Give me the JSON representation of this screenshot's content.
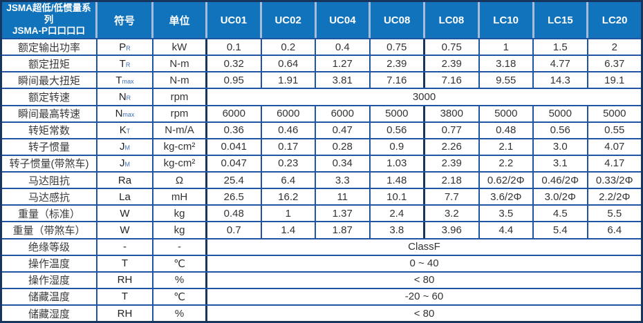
{
  "table": {
    "title_line1": "JSMA超低/低惯量系列",
    "title_line2": "JSMA-P口口口口",
    "header": {
      "symbol_label": "符号",
      "unit_label": "单位",
      "models": [
        "UC01",
        "UC02",
        "UC04",
        "UC08",
        "LC08",
        "LC10",
        "LC15",
        "LC20"
      ]
    },
    "rows": [
      {
        "label": "额定输出功率",
        "sym": "P",
        "sub": "R",
        "unit": "kW",
        "values": [
          "0.1",
          "0.2",
          "0.4",
          "0.75",
          "0.75",
          "1",
          "1.5",
          "2"
        ]
      },
      {
        "label": "额定扭矩",
        "sym": "T",
        "sub": "R",
        "unit": "N-m",
        "values": [
          "0.32",
          "0.64",
          "1.27",
          "2.39",
          "2.39",
          "3.18",
          "4.77",
          "6.37"
        ]
      },
      {
        "label": "瞬间最大扭矩",
        "sym": "T",
        "sub": "max",
        "unit": "N-m",
        "values": [
          "0.95",
          "1.91",
          "3.81",
          "7.16",
          "7.16",
          "9.55",
          "14.3",
          "19.1"
        ]
      },
      {
        "label": "额定转速",
        "sym": "N",
        "sub": "R",
        "unit": "rpm",
        "span": "3000"
      },
      {
        "label": "瞬间最高转速",
        "sym": "N",
        "sub": "max",
        "unit": "rpm",
        "values": [
          "6000",
          "6000",
          "6000",
          "5000",
          "3800",
          "5000",
          "5000",
          "5000"
        ]
      },
      {
        "label": "转矩常数",
        "sym": "K",
        "sub": "T",
        "unit": "N-m/A",
        "values": [
          "0.36",
          "0.46",
          "0.47",
          "0.56",
          "0.77",
          "0.48",
          "0.56",
          "0.55"
        ]
      },
      {
        "label": "转子惯量",
        "sym": "J",
        "sub": "M",
        "unit": "kg-cm²",
        "values": [
          "0.041",
          "0.17",
          "0.28",
          "0.9",
          "2.26",
          "2.1",
          "3.0",
          "4.07"
        ]
      },
      {
        "label": "转子惯量(带煞车)",
        "sym": "J",
        "sub": "M",
        "unit": "kg-cm²",
        "values": [
          "0.047",
          "0.23",
          "0.34",
          "1.03",
          "2.39",
          "2.2",
          "3.1",
          "4.17"
        ]
      },
      {
        "label": "马达阻抗",
        "sym": "Ra",
        "sub": "",
        "unit": "Ω",
        "values": [
          "25.4",
          "6.4",
          "3.3",
          "1.48",
          "2.18",
          "0.62/2Φ",
          "0.46/2Φ",
          "0.33/2Φ"
        ]
      },
      {
        "label": "马达感抗",
        "sym": "La",
        "sub": "",
        "unit": "mH",
        "values": [
          "26.5",
          "16.2",
          "11",
          "10.1",
          "7.7",
          "3.6/2Φ",
          "3.0/2Φ",
          "2.2/2Φ"
        ]
      },
      {
        "label": "重量（标准）",
        "sym": "W",
        "sub": "",
        "unit": "kg",
        "values": [
          "0.48",
          "1",
          "1.37",
          "2.4",
          "3.2",
          "3.5",
          "4.5",
          "5.5"
        ]
      },
      {
        "label": "重量（带煞车）",
        "sym": "W",
        "sub": "",
        "unit": "kg",
        "values": [
          "0.7",
          "1.4",
          "1.87",
          "3.8",
          "3.96",
          "4.4",
          "5.4",
          "6.4"
        ]
      },
      {
        "label": "绝缘等级",
        "sym": "-",
        "sub": "",
        "unit": "-",
        "span": "ClassF"
      },
      {
        "label": "操作温度",
        "sym": "T",
        "sub": "",
        "unit": "℃",
        "span": "0 ~ 40"
      },
      {
        "label": "操作湿度",
        "sym": "RH",
        "sub": "",
        "unit": "%",
        "span": "< 80"
      },
      {
        "label": "储藏温度",
        "sym": "T",
        "sub": "",
        "unit": "℃",
        "span": "-20 ~ 60"
      },
      {
        "label": "储藏湿度",
        "sym": "RH",
        "sub": "",
        "unit": "%",
        "span": "< 80"
      }
    ],
    "colors": {
      "header_bg": "#1173BB",
      "header_divider": "#A9BDDB",
      "grid_line": "#1D55A3",
      "outer_border": "#16365F",
      "text": "#333333"
    }
  }
}
